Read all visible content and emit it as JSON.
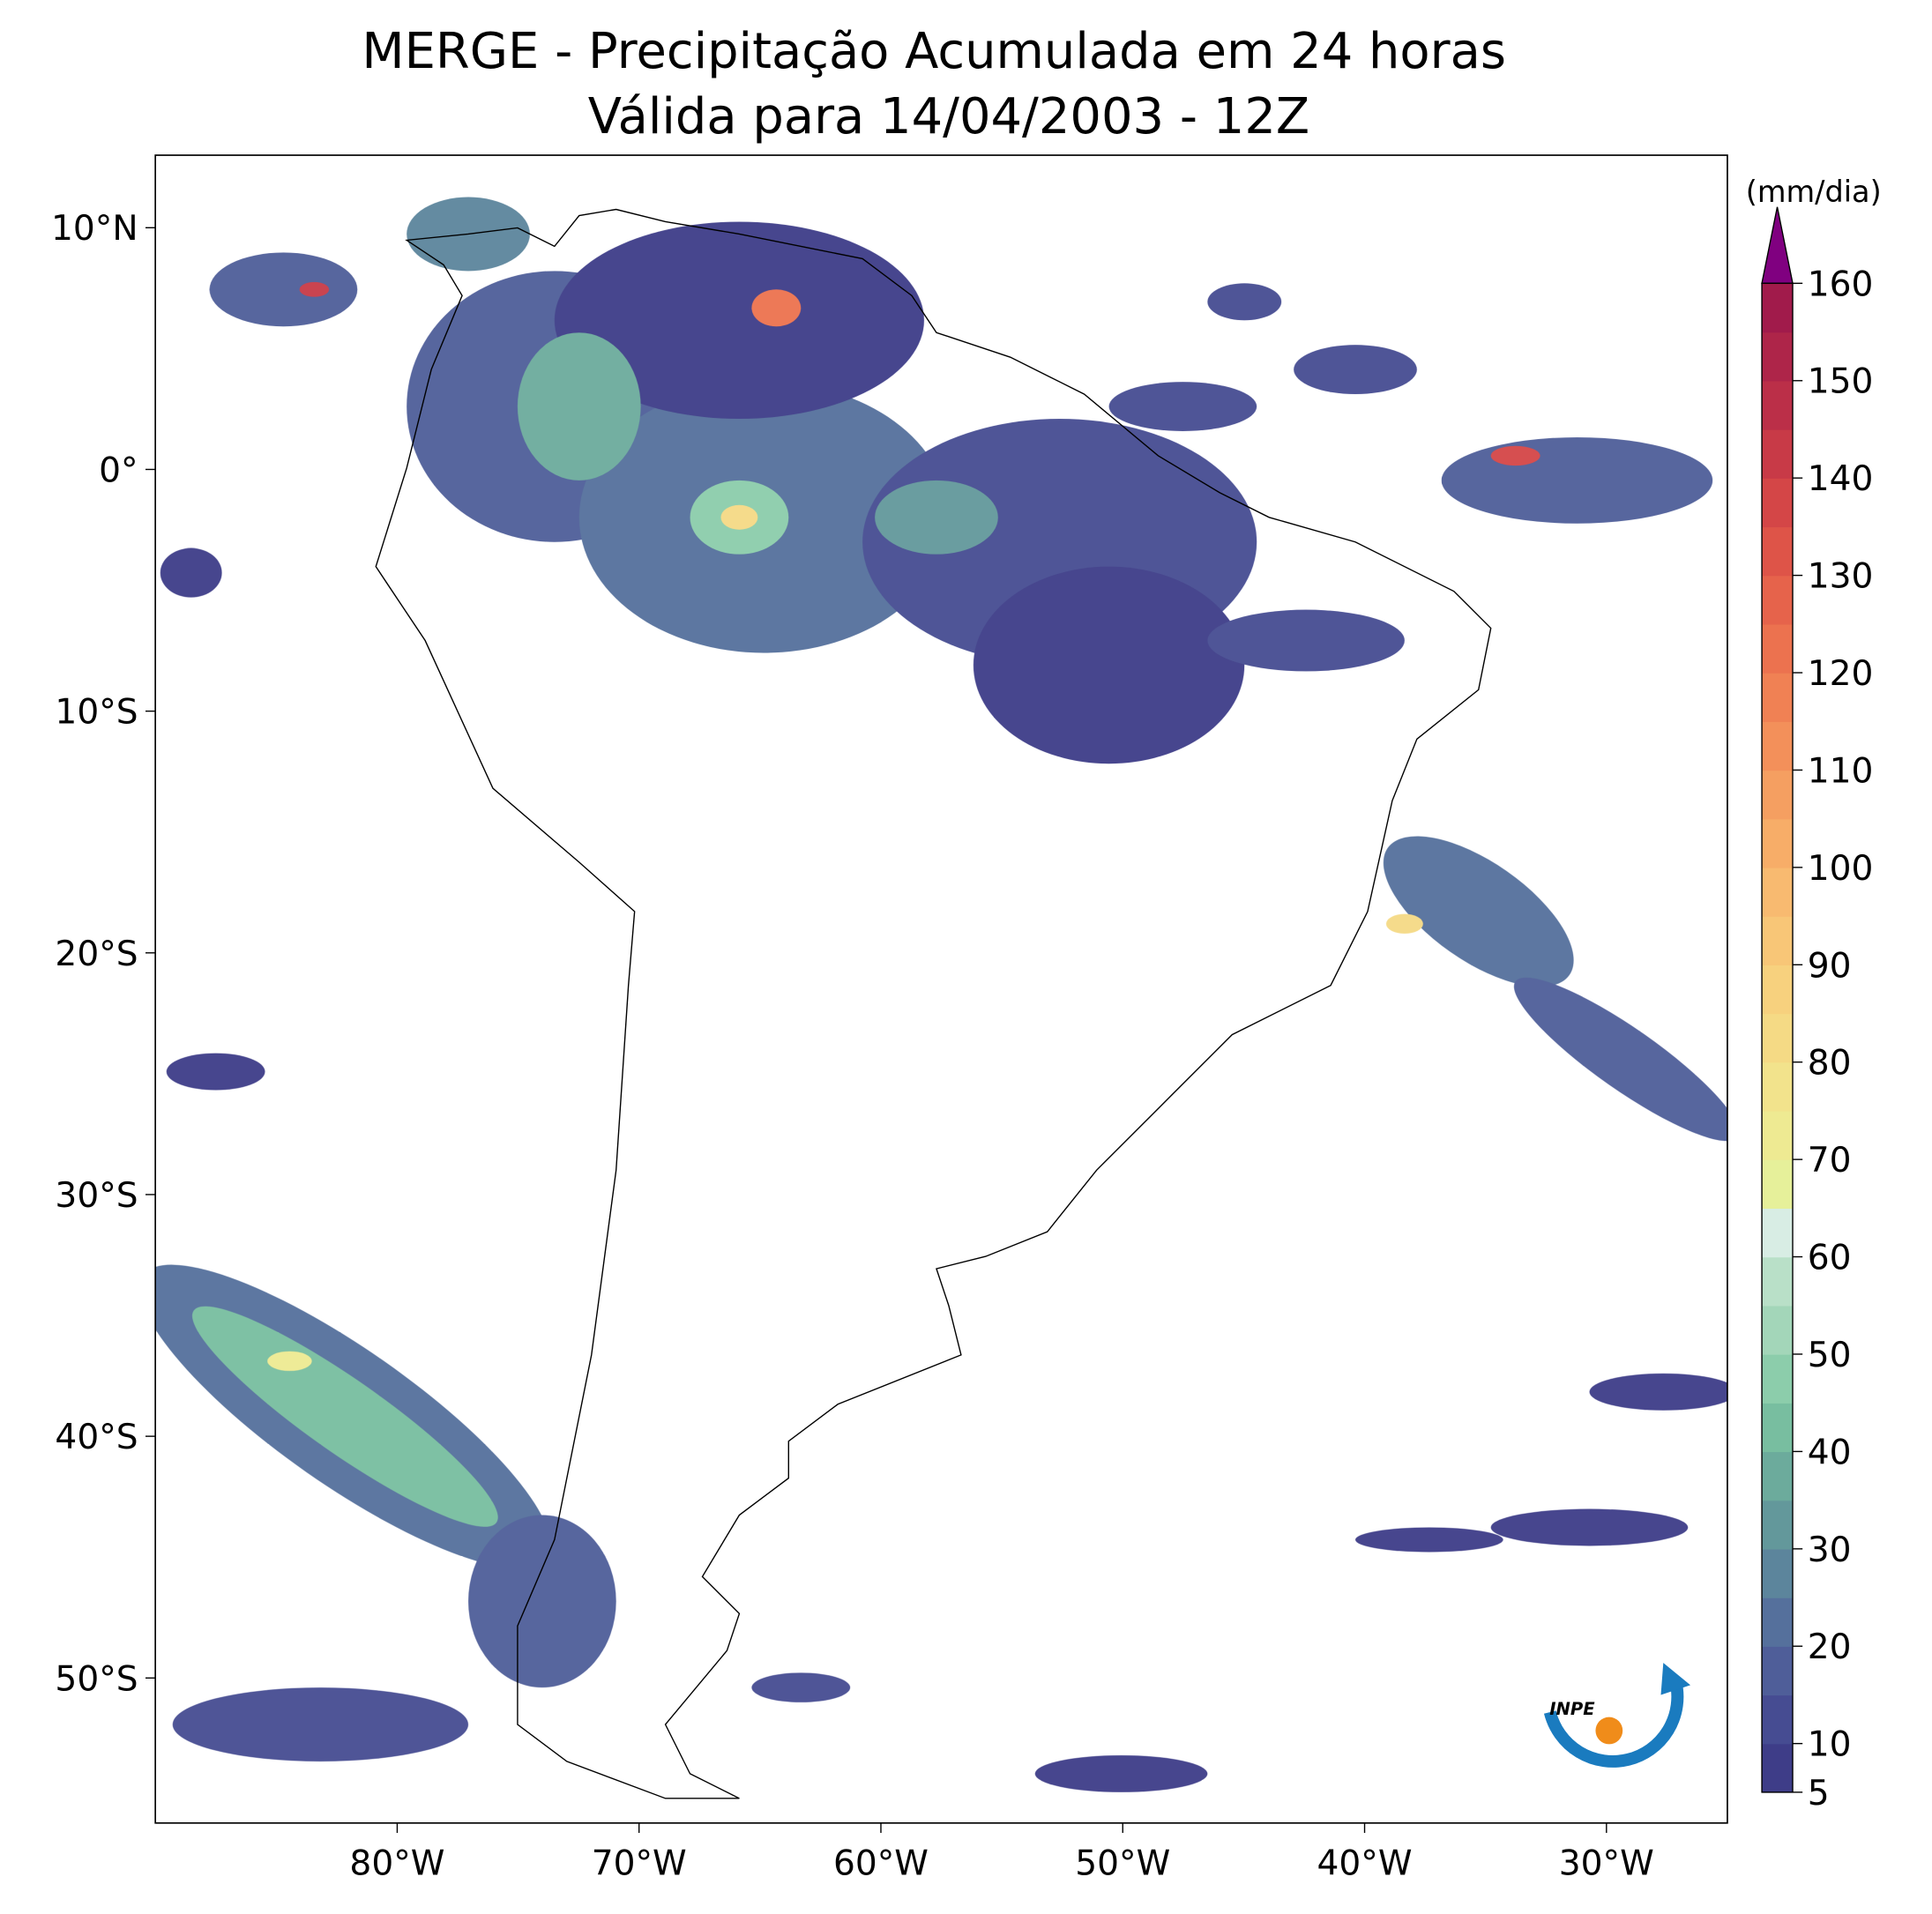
{
  "header": {
    "title": "MERGE - Precipitação Acumulada em 24 horas",
    "subtitle": "Válida para 14/04/2003 - 12Z"
  },
  "map": {
    "xlim": [
      -90,
      -25
    ],
    "ylim": [
      -56,
      13
    ],
    "xticks": [
      {
        "value": -80,
        "label": "80°W"
      },
      {
        "value": -70,
        "label": "70°W"
      },
      {
        "value": -60,
        "label": "60°W"
      },
      {
        "value": -50,
        "label": "50°W"
      },
      {
        "value": -40,
        "label": "40°W"
      },
      {
        "value": -30,
        "label": "30°W"
      }
    ],
    "yticks": [
      {
        "value": 10,
        "label": "10°N"
      },
      {
        "value": 0,
        "label": "0°"
      },
      {
        "value": -10,
        "label": "10°S"
      },
      {
        "value": -20,
        "label": "20°S"
      },
      {
        "value": -30,
        "label": "30°S"
      },
      {
        "value": -40,
        "label": "40°S"
      },
      {
        "value": -50,
        "label": "50°S"
      }
    ]
  },
  "colorbar": {
    "unit": "(mm/dia)",
    "lim": [
      5,
      160
    ],
    "ticks": [
      5,
      10,
      20,
      30,
      40,
      50,
      60,
      70,
      80,
      90,
      100,
      110,
      120,
      130,
      140,
      150,
      160
    ],
    "colors": [
      "#3e3d88",
      "#464c92",
      "#4f5e99",
      "#55709c",
      "#5c859c",
      "#63989b",
      "#6cab9c",
      "#78bea0",
      "#8ccdab",
      "#a3d6b9",
      "#b9e0c8",
      "#d8ede4",
      "#e6f09a",
      "#eeea92",
      "#f2e38c",
      "#f5da85",
      "#f7d17e",
      "#f8c677",
      "#f8ba70",
      "#f7ad68",
      "#f59f61",
      "#f3905a",
      "#f08154",
      "#ec724f",
      "#e6634b",
      "#de5448",
      "#d44647",
      "#c83a47",
      "#bb2f48",
      "#ae2549",
      "#a11b4b"
    ],
    "extend_color": "#800080"
  },
  "logo": {
    "text": "INPE"
  }
}
